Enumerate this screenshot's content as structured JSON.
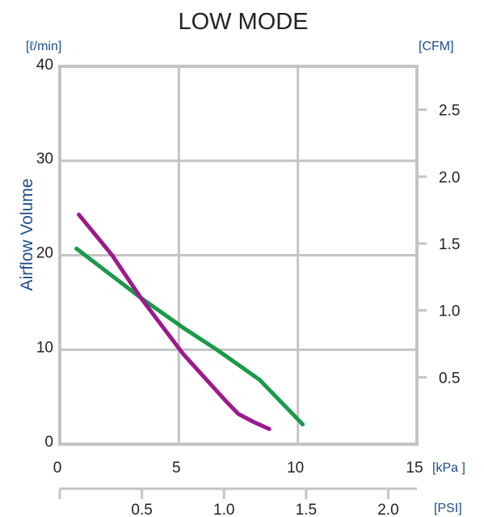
{
  "chart_data": {
    "type": "line",
    "title": "LOW MODE",
    "ylabel": "Airflow Volume",
    "x_unit": "[kPa ]",
    "x2_unit": "[PSI]",
    "y_unit": "[ℓ/min]",
    "y2_unit": "[CFM]",
    "xlim": [
      0,
      15
    ],
    "ylim": [
      0,
      40
    ],
    "x2lim": [
      0,
      2.175
    ],
    "y2lim": [
      0,
      2.824
    ],
    "x_ticks": [
      "0",
      "5",
      "10",
      "15"
    ],
    "y_ticks": [
      "0",
      "10",
      "20",
      "30",
      "40"
    ],
    "x2_ticks": [
      "0.5",
      "1.0",
      "1.5",
      "2.0"
    ],
    "y2_ticks": [
      "0.5",
      "1.0",
      "1.5",
      "2.0",
      "2.5"
    ],
    "grid": true,
    "series": [
      {
        "color": "#1a9a4a",
        "points": [
          [
            0.7,
            20.7
          ],
          [
            3.4,
            15.5
          ],
          [
            5.2,
            12.3
          ],
          [
            6.6,
            10.0
          ],
          [
            8.4,
            6.8
          ],
          [
            10.2,
            2.1
          ]
        ]
      },
      {
        "color": "#9b1a8c",
        "points": [
          [
            0.8,
            24.3
          ],
          [
            2.2,
            20.0
          ],
          [
            3.4,
            15.5
          ],
          [
            4.3,
            12.5
          ],
          [
            5.2,
            9.5
          ],
          [
            6.1,
            7.0
          ],
          [
            7.0,
            4.5
          ],
          [
            7.5,
            3.2
          ],
          [
            8.1,
            2.4
          ],
          [
            8.8,
            1.6
          ]
        ]
      }
    ]
  }
}
